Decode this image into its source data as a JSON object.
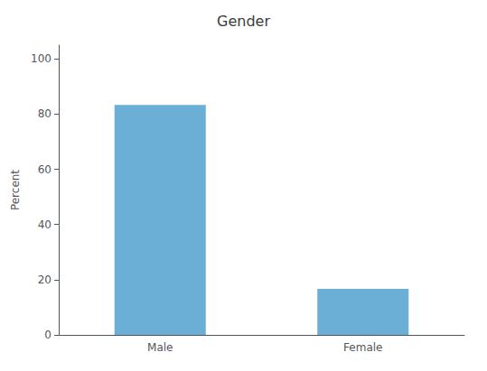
{
  "chart_data": {
    "type": "bar",
    "title": "Gender",
    "categories": [
      "Male",
      "Female"
    ],
    "values": [
      83.3,
      16.7
    ],
    "color": "#6baed6",
    "ylabel": "Percent",
    "ylim": [
      0,
      105
    ],
    "yticks": [
      0,
      20,
      40,
      60,
      80,
      100
    ],
    "grid": false
  }
}
